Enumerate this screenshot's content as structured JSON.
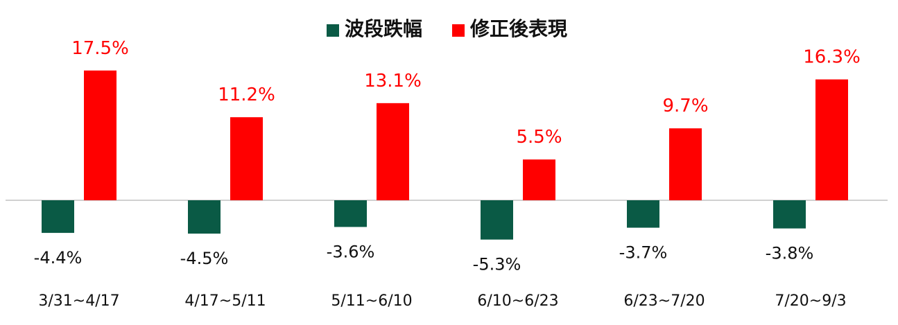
{
  "chart_data": {
    "type": "bar",
    "categories": [
      "3/31~4/17",
      "4/17~5/11",
      "5/11~6/10",
      "6/10~6/23",
      "6/23~7/20",
      "7/20~9/3"
    ],
    "series": [
      {
        "name": "波段跌幅",
        "color": "#0a5a45",
        "values": [
          -4.4,
          -4.5,
          -3.6,
          -5.3,
          -3.7,
          -3.8
        ],
        "labels": [
          "-4.4%",
          "-4.5%",
          "-3.6%",
          "-5.3%",
          "-3.7%",
          "-3.8%"
        ]
      },
      {
        "name": "修正後表現",
        "color": "#ff0000",
        "values": [
          17.5,
          11.2,
          13.1,
          5.5,
          9.7,
          16.3
        ],
        "labels": [
          "17.5%",
          "11.2%",
          "13.1%",
          "5.5%",
          "9.7%",
          "16.3%"
        ]
      }
    ],
    "legend_position": "top-center",
    "grid": false,
    "axis_line_color": "#d0d0d0"
  }
}
